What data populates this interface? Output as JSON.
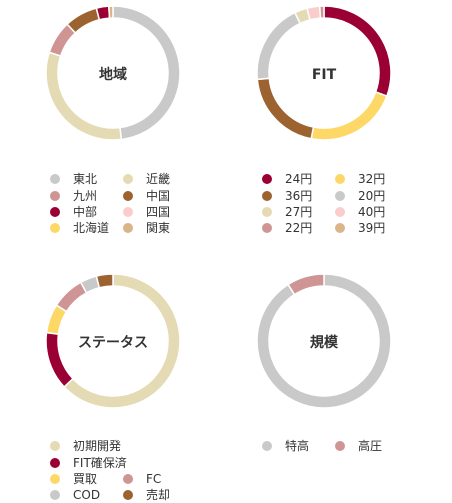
{
  "colors": {
    "crimson": "#9b0034",
    "gold": "#fdd866",
    "brown": "#9c6330",
    "grey": "#c9c9c9",
    "beige": "#e4dbb4",
    "pink": "#fbcccc",
    "rose": "#cf9494",
    "tan": "#dbb489"
  },
  "chart_data": [
    {
      "type": "donut",
      "title": "地域",
      "series": [
        {
          "name": "東北",
          "value": 48,
          "color": "#c9c9c9"
        },
        {
          "name": "九州",
          "value": 8,
          "color": "#cf9494"
        },
        {
          "name": "中部",
          "value": 3,
          "color": "#9b0034"
        },
        {
          "name": "北海道",
          "value": 0,
          "color": "#fdd866"
        },
        {
          "name": "近畿",
          "value": 32,
          "color": "#e4dbb4"
        },
        {
          "name": "中国",
          "value": 8,
          "color": "#9c6330"
        },
        {
          "name": "四国",
          "value": 0,
          "color": "#fbcccc"
        },
        {
          "name": "関東",
          "value": 1,
          "color": "#dbb489"
        }
      ],
      "slice_order": [
        "東北",
        "近畿",
        "九州",
        "中国",
        "中部",
        "関東"
      ]
    },
    {
      "type": "donut",
      "title": "FIT",
      "series": [
        {
          "name": "24円",
          "value": 30,
          "color": "#9b0034"
        },
        {
          "name": "36円",
          "value": 20,
          "color": "#9c6330"
        },
        {
          "name": "27円",
          "value": 3,
          "color": "#e4dbb4"
        },
        {
          "name": "22円",
          "value": 1,
          "color": "#cf9494"
        },
        {
          "name": "32円",
          "value": 22,
          "color": "#fdd866"
        },
        {
          "name": "20円",
          "value": 19,
          "color": "#c9c9c9"
        },
        {
          "name": "40円",
          "value": 3,
          "color": "#fbcccc"
        },
        {
          "name": "39円",
          "value": 0,
          "color": "#dbb489"
        }
      ],
      "slice_order": [
        "24円",
        "32円",
        "36円",
        "20円",
        "27円",
        "40円",
        "22円"
      ]
    },
    {
      "type": "donut",
      "title": "ステータス",
      "series": [
        {
          "name": "初期開発",
          "value": 63,
          "color": "#e4dbb4"
        },
        {
          "name": "FIT確保済",
          "value": 14,
          "color": "#9b0034"
        },
        {
          "name": "買取",
          "value": 7,
          "color": "#fdd866"
        },
        {
          "name": "FC",
          "value": 8,
          "color": "#cf9494"
        },
        {
          "name": "COD",
          "value": 4,
          "color": "#c9c9c9"
        },
        {
          "name": "売却",
          "value": 4,
          "color": "#9c6330"
        }
      ],
      "slice_order": [
        "初期開発",
        "FIT確保済",
        "買取",
        "FC",
        "COD",
        "売却"
      ]
    },
    {
      "type": "donut",
      "title": "規模",
      "series": [
        {
          "name": "特高",
          "value": 91,
          "color": "#c9c9c9"
        },
        {
          "name": "高圧",
          "value": 9,
          "color": "#cf9494"
        }
      ],
      "slice_order": [
        "特高",
        "高圧"
      ]
    }
  ]
}
